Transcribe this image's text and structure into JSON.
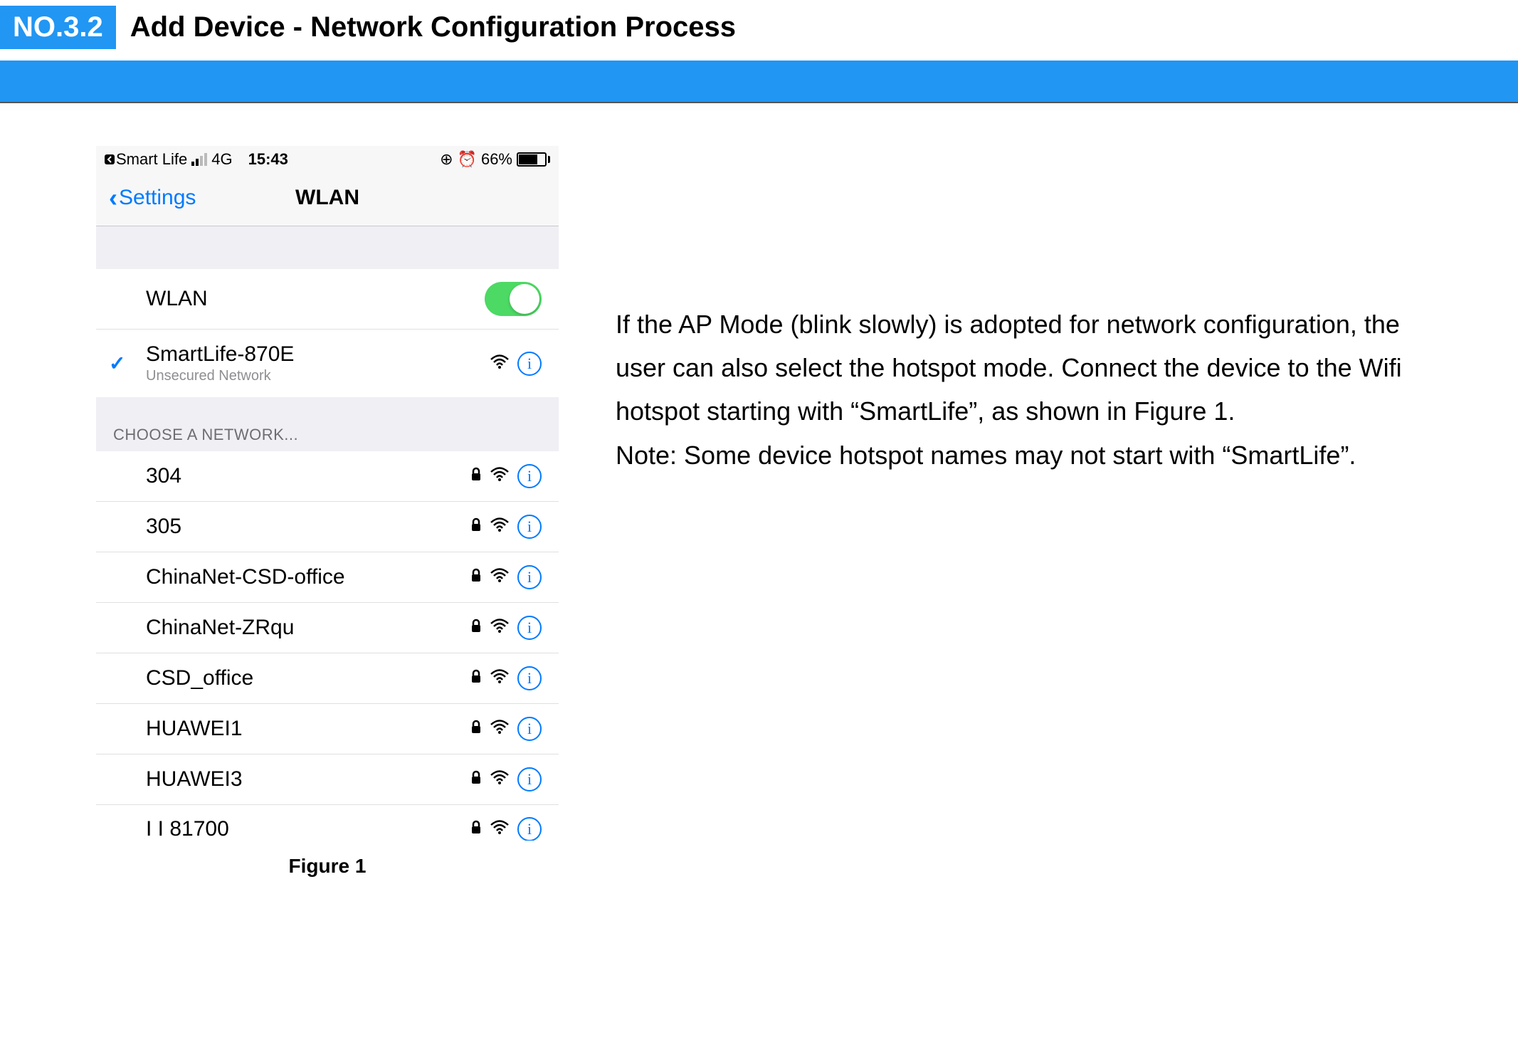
{
  "header": {
    "badge": "NO.3.2",
    "title": "Add Device - Network Configuration Process"
  },
  "phone": {
    "status": {
      "back_app": "Smart Life",
      "carrier": "4G",
      "time": "15:43",
      "battery_pct": "66%"
    },
    "nav": {
      "back_label": "Settings",
      "title": "WLAN"
    },
    "wlan_toggle_label": "WLAN",
    "connected": {
      "ssid": "SmartLife-870E",
      "subtitle": "Unsecured Network"
    },
    "section_header": "CHOOSE A NETWORK...",
    "networks": [
      {
        "ssid": "304",
        "locked": true
      },
      {
        "ssid": "305",
        "locked": true
      },
      {
        "ssid": "ChinaNet-CSD-office",
        "locked": true
      },
      {
        "ssid": "ChinaNet-ZRqu",
        "locked": true
      },
      {
        "ssid": "CSD_office",
        "locked": true
      },
      {
        "ssid": "HUAWEI1",
        "locked": true
      },
      {
        "ssid": "HUAWEI3",
        "locked": true
      },
      {
        "ssid": "I I 81700",
        "locked": true,
        "partial": true
      }
    ],
    "figure_caption": "Figure 1"
  },
  "body": {
    "para1": "If the AP Mode (blink slowly) is adopted for network configuration, the user can also select the hotspot mode. Connect the device to the Wifi hotspot starting with “SmartLife”, as shown in Figure 1.",
    "para2": "Note: Some device hotspot names may not start with “SmartLife”."
  },
  "colors": {
    "accent_blue": "#2196f3",
    "ios_blue": "#007aff",
    "toggle_green": "#4cd964",
    "bg_grey": "#efeff4",
    "text_grey": "#8e8e93"
  }
}
